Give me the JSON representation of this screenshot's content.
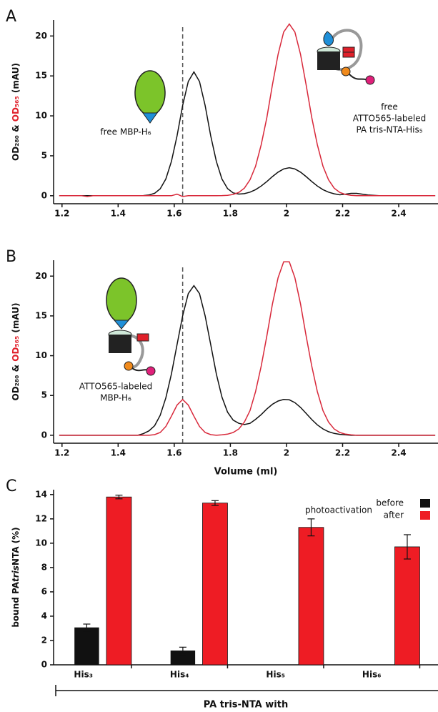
{
  "chart_data": [
    {
      "type": "line",
      "panel_label": "A",
      "y_label": [
        {
          "text": "OD₂₈₀",
          "color": "#111111"
        },
        {
          "text": " & ",
          "color": "#111111"
        },
        {
          "text": "OD₅₆₅",
          "color": "#e0202a"
        },
        {
          "text": " (mAU)",
          "color": "#111111"
        }
      ],
      "annotations": [
        "free MBP-H₆",
        "free",
        "ATTO565-labeled",
        "PA tris-NTA-His₅"
      ],
      "x": [
        1.19,
        1.21,
        1.23,
        1.25,
        1.27,
        1.29,
        1.31,
        1.33,
        1.35,
        1.37,
        1.39,
        1.41,
        1.43,
        1.45,
        1.47,
        1.49,
        1.51,
        1.53,
        1.55,
        1.57,
        1.59,
        1.61,
        1.63,
        1.65,
        1.67,
        1.69,
        1.71,
        1.73,
        1.75,
        1.77,
        1.79,
        1.81,
        1.83,
        1.85,
        1.87,
        1.89,
        1.91,
        1.93,
        1.95,
        1.97,
        1.99,
        2.01,
        2.03,
        2.05,
        2.07,
        2.09,
        2.11,
        2.13,
        2.15,
        2.17,
        2.19,
        2.21,
        2.23,
        2.25,
        2.27,
        2.29,
        2.31,
        2.33,
        2.35,
        2.37,
        2.39,
        2.41,
        2.43,
        2.45,
        2.47,
        2.49,
        2.51,
        2.53
      ],
      "series": [
        {
          "color": "#111111",
          "values": [
            0,
            0,
            0,
            0,
            0,
            0,
            0,
            0,
            0,
            0,
            0,
            0,
            0,
            0,
            0,
            0.02,
            0.09,
            0.31,
            0.87,
            2.1,
            4.3,
            7.5,
            11.3,
            14.3,
            15.5,
            14.3,
            11.3,
            7.5,
            4.3,
            2.1,
            0.89,
            0.36,
            0.21,
            0.26,
            0.45,
            0.76,
            1.22,
            1.78,
            2.4,
            2.96,
            3.36,
            3.5,
            3.36,
            2.96,
            2.4,
            1.78,
            1.22,
            0.76,
            0.45,
            0.24,
            0.12,
            0.2,
            0.3,
            0.3,
            0.2,
            0.1,
            0.05,
            0,
            0,
            0,
            0,
            0,
            0,
            0,
            0,
            0,
            0,
            0
          ]
        },
        {
          "color": "#d8283a",
          "values": [
            0,
            0,
            0,
            0,
            0,
            -0.1,
            0,
            0,
            0,
            0,
            0,
            0,
            0,
            0,
            0,
            0,
            0,
            0,
            0,
            0,
            0,
            0.2,
            -0.1,
            0,
            0,
            0,
            0,
            0,
            0,
            0.02,
            0.06,
            0.16,
            0.41,
            0.95,
            2.0,
            3.7,
            6.4,
            9.8,
            13.9,
            17.7,
            20.5,
            21.5,
            20.5,
            17.7,
            13.9,
            9.8,
            6.4,
            3.7,
            2.0,
            0.95,
            0.41,
            0.16,
            0.06,
            0,
            0,
            0,
            0,
            0,
            0,
            0,
            0,
            0,
            0,
            0,
            0,
            0,
            0,
            0
          ]
        }
      ],
      "xlim": [
        1.17,
        2.54
      ],
      "xticks": [
        1.2,
        1.4,
        1.6,
        1.8,
        2.0,
        2.2,
        2.4
      ],
      "ylim": [
        -1,
        22
      ],
      "yticks": [
        0,
        5,
        10,
        15,
        20
      ],
      "vline": 1.63
    },
    {
      "type": "line",
      "panel_label": "B",
      "y_label": [
        {
          "text": "OD₂₈₀",
          "color": "#111111"
        },
        {
          "text": " & ",
          "color": "#111111"
        },
        {
          "text": "OD₅₆₅",
          "color": "#e0202a"
        },
        {
          "text": " (mAU)",
          "color": "#111111"
        }
      ],
      "x_label": "Volume (ml)",
      "annotations": [
        "ATTO565-labeled",
        "MBP-H₆"
      ],
      "x": [
        1.19,
        1.21,
        1.23,
        1.25,
        1.27,
        1.29,
        1.31,
        1.33,
        1.35,
        1.37,
        1.39,
        1.41,
        1.43,
        1.45,
        1.47,
        1.49,
        1.51,
        1.53,
        1.55,
        1.57,
        1.59,
        1.61,
        1.63,
        1.65,
        1.67,
        1.69,
        1.71,
        1.73,
        1.75,
        1.77,
        1.79,
        1.81,
        1.83,
        1.85,
        1.87,
        1.89,
        1.91,
        1.93,
        1.95,
        1.97,
        1.99,
        2.01,
        2.03,
        2.05,
        2.07,
        2.09,
        2.11,
        2.13,
        2.15,
        2.17,
        2.19,
        2.21,
        2.23,
        2.25,
        2.27,
        2.29,
        2.31,
        2.33,
        2.35,
        2.37,
        2.39,
        2.41,
        2.43,
        2.45,
        2.47,
        2.49,
        2.51,
        2.53
      ],
      "series": [
        {
          "color": "#111111",
          "values": [
            0,
            0,
            0,
            0,
            0,
            0,
            0,
            0,
            0,
            0,
            0,
            0,
            0,
            0,
            0,
            0.2,
            0.55,
            1.2,
            2.5,
            4.7,
            7.7,
            11.4,
            15.0,
            17.8,
            18.8,
            17.8,
            15.0,
            11.4,
            7.7,
            4.8,
            2.9,
            1.9,
            1.5,
            1.35,
            1.5,
            2.0,
            2.6,
            3.3,
            3.9,
            4.3,
            4.5,
            4.45,
            4.1,
            3.5,
            2.75,
            1.97,
            1.31,
            0.8,
            0.45,
            0.23,
            0.11,
            0.05,
            0,
            0,
            0,
            0,
            0,
            0,
            0,
            0,
            0,
            0,
            0,
            0,
            0,
            0,
            0,
            0
          ]
        },
        {
          "color": "#d8283a",
          "values": [
            0,
            0,
            0,
            0,
            0,
            0,
            0,
            0,
            0,
            0,
            0,
            0,
            0,
            0,
            0,
            0,
            0,
            0.08,
            0.35,
            1.1,
            2.4,
            3.8,
            4.5,
            3.8,
            2.4,
            1.1,
            0.35,
            0.08,
            0,
            0.05,
            0.14,
            0.35,
            0.79,
            1.65,
            3.1,
            5.5,
            8.7,
            12.5,
            16.5,
            19.8,
            21.8,
            21.8,
            19.8,
            16.5,
            12.5,
            8.7,
            5.5,
            3.1,
            1.65,
            0.79,
            0.35,
            0.14,
            0.05,
            0,
            0,
            0,
            0,
            0,
            0,
            0,
            0,
            0,
            0,
            0,
            0,
            0,
            0,
            0
          ]
        }
      ],
      "xlim": [
        1.17,
        2.54
      ],
      "xticks": [
        1.2,
        1.4,
        1.6,
        1.8,
        2.0,
        2.2,
        2.4
      ],
      "ylim": [
        -1,
        22
      ],
      "yticks": [
        0,
        5,
        10,
        15,
        20
      ],
      "vline": 1.63
    },
    {
      "type": "bar",
      "panel_label": "C",
      "y_label": [
        {
          "text": "bound PA",
          "style": "normal"
        },
        {
          "text": "tris",
          "style": "italic"
        },
        {
          "text": "NTA (%)",
          "style": "normal"
        }
      ],
      "x_label": "PA tris-NTA with",
      "legend_title": "photoactivation",
      "categories": [
        "His₃",
        "His₄",
        "His₅",
        "His₆"
      ],
      "series": [
        {
          "name": "before",
          "color": "#111111",
          "values": [
            3.05,
            1.15,
            null,
            null
          ],
          "errors": [
            0.3,
            0.3,
            null,
            null
          ]
        },
        {
          "name": "after",
          "color": "#ee1c24",
          "values": [
            13.8,
            13.3,
            11.3,
            9.7
          ],
          "errors": [
            0.15,
            0.2,
            0.7,
            1.0
          ]
        }
      ],
      "ylim": [
        0,
        14.4
      ],
      "yticks": [
        0,
        2,
        4,
        6,
        8,
        10,
        12,
        14
      ]
    }
  ]
}
